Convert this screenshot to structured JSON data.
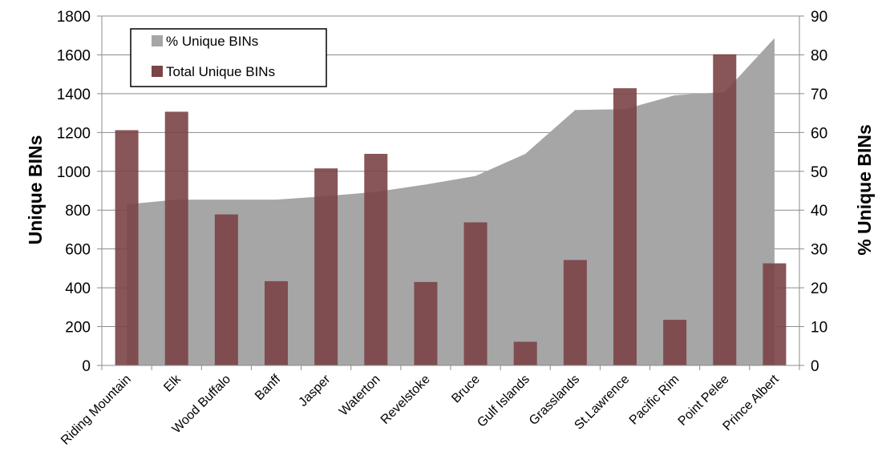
{
  "chart_data": {
    "type": "bar",
    "categories": [
      "Riding Mountain",
      "Elk",
      "Wood Buffalo",
      "Banff",
      "Jasper",
      "Waterton",
      "Revelstoke",
      "Bruce",
      "Gulf Islands",
      "Grasslands",
      "St.Lawrence",
      "Pacific Rim",
      "Point Pelee",
      "Prince Albert"
    ],
    "series": [
      {
        "name": "Total Unique BINs",
        "type": "bar",
        "axis": "left",
        "color": "#7b4446",
        "values": [
          1212,
          1307,
          778,
          434,
          1015,
          1090,
          430,
          737,
          122,
          543,
          1428,
          235,
          1603,
          526
        ]
      },
      {
        "name": "% Unique BINs",
        "type": "area",
        "axis": "right",
        "color": "#a6a6a6",
        "values": [
          41.5,
          42.7,
          42.7,
          42.7,
          43.6,
          44.7,
          46.6,
          48.8,
          54.5,
          65.8,
          66.0,
          69.6,
          70.4,
          84.3
        ]
      }
    ],
    "ylabel": "Unique BINs",
    "y2label": "% Unique BINs",
    "ylim": [
      0,
      1800
    ],
    "y2lim": [
      0,
      90
    ],
    "yticks": [
      "0",
      "200",
      "400",
      "600",
      "800",
      "1000",
      "1200",
      "1400",
      "1600",
      "1800"
    ],
    "y2ticks": [
      "0",
      "10",
      "20",
      "30",
      "40",
      "50",
      "60",
      "70",
      "80",
      "90"
    ],
    "grid": true,
    "legend_position": "top-left",
    "legend": [
      "% Unique BINs",
      "Total Unique BINs"
    ]
  }
}
